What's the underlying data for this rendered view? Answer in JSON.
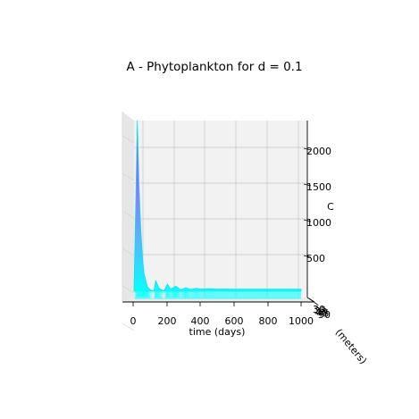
{
  "chart_data": {
    "type": "surface",
    "title": "A - Phytoplankton for d = 0.1",
    "xlabel": "time (days)",
    "ylabel": "(meters)",
    "zlabel": "C",
    "x_ticks": [
      "0",
      "200",
      "400",
      "600",
      "800",
      "1000"
    ],
    "z_ticks": [
      "500",
      "1000",
      "1500",
      "2000"
    ],
    "y_ticks": [
      "30",
      "35",
      "40",
      "45",
      "50"
    ],
    "xlim": [
      0,
      1000
    ],
    "zlim": [
      0,
      2400
    ],
    "grid": true,
    "colormap": "cool",
    "colors": {
      "low": "#00ffff",
      "high": "#ff00ff"
    },
    "series": [
      {
        "x": [
          0,
          20,
          30,
          40,
          50,
          60,
          80,
          100,
          120,
          130,
          150,
          180,
          200,
          220,
          250,
          280,
          310,
          340,
          370,
          400,
          450,
          500,
          550,
          600,
          650,
          700,
          800,
          900,
          1000
        ],
        "values": [
          0,
          2400,
          1500,
          900,
          500,
          250,
          60,
          15,
          5,
          150,
          40,
          5,
          100,
          30,
          70,
          20,
          50,
          25,
          40,
          30,
          35,
          30,
          32,
          30,
          30,
          30,
          30,
          30,
          30
        ]
      }
    ]
  }
}
